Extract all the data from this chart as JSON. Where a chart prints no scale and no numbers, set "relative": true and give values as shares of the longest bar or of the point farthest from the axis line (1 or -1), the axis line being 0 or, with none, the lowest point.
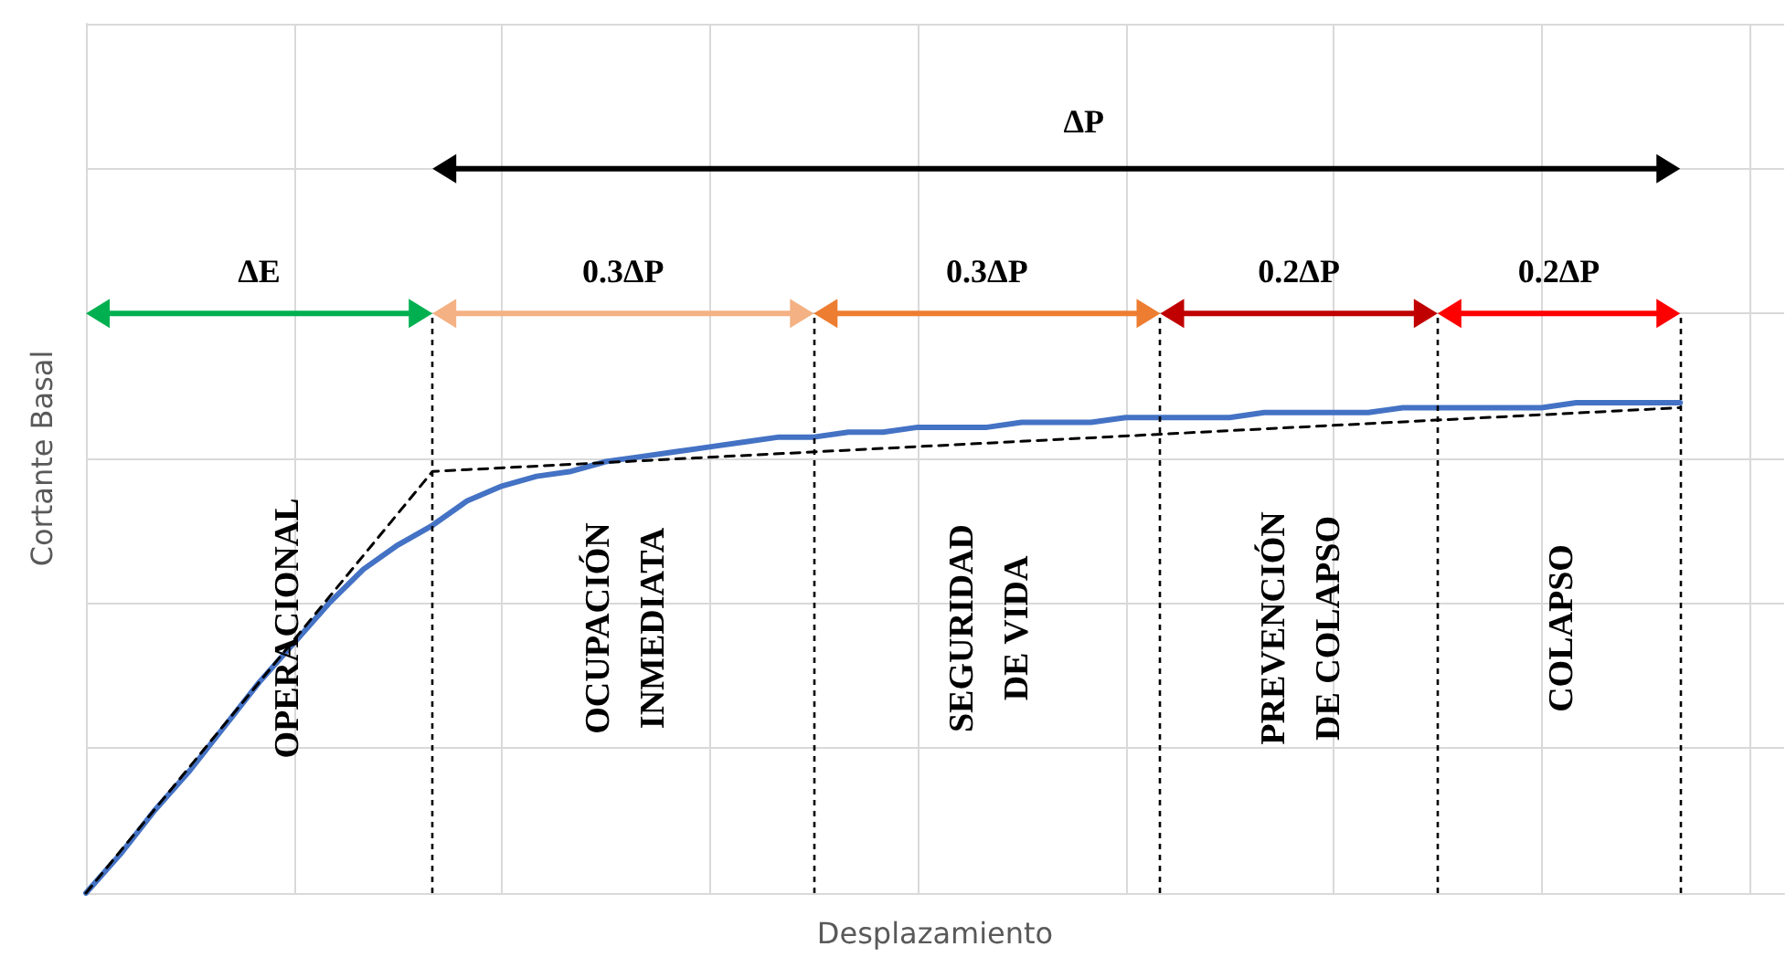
{
  "chart_data": {
    "type": "line",
    "relative": true,
    "xlabel": "Desplazamiento",
    "ylabel": "Cortante Basal",
    "categories": [
      null,
      null,
      null,
      null,
      null,
      null,
      null,
      null,
      null,
      null,
      null,
      null,
      null,
      null,
      null,
      null,
      null,
      null,
      null,
      null,
      null,
      null,
      null,
      null,
      null,
      null,
      null,
      null,
      null,
      null,
      null,
      null,
      null,
      null,
      null,
      null,
      null,
      null,
      null,
      null,
      null,
      null,
      null,
      null,
      null,
      null,
      null,
      null,
      null,
      null
    ],
    "series": [
      {
        "color": "#4472c4",
        "line_style": "solid",
        "values": [
          0,
          0.08,
          0.17,
          0.25,
          0.34,
          0.43,
          0.51,
          0.59,
          0.66,
          0.71,
          0.75,
          0.8,
          0.83,
          0.85,
          0.86,
          0.88,
          0.89,
          0.9,
          0.91,
          0.92,
          0.93,
          0.93,
          0.94,
          0.94,
          0.95,
          0.95,
          0.95,
          0.96,
          0.96,
          0.96,
          0.97,
          0.97,
          0.97,
          0.97,
          0.98,
          0.98,
          0.98,
          0.98,
          0.99,
          0.99,
          0.99,
          0.99,
          0.99,
          1,
          1,
          1,
          1,
          null,
          null,
          null
        ]
      },
      {
        "color": "#000000",
        "line_style": "dashed",
        "values": [
          0,
          null,
          null,
          null,
          null,
          null,
          null,
          null,
          null,
          null,
          0.86,
          null,
          null,
          null,
          null,
          null,
          null,
          null,
          null,
          null,
          null,
          null,
          null,
          null,
          null,
          null,
          null,
          null,
          null,
          null,
          null,
          null,
          null,
          null,
          null,
          null,
          null,
          null,
          null,
          null,
          null,
          null,
          null,
          null,
          null,
          null,
          0.99,
          null,
          null,
          null
        ]
      }
    ],
    "annotations": [
      "ΔP",
      "ΔE",
      "0.3ΔP",
      "0.3ΔP",
      "0.2ΔP",
      "0.2ΔP",
      "OPERACIONAL",
      "OCUPACIÓN\nINMEDIATA",
      "SEGURIDAD\nDE VIDA",
      "PREVENCIÓN\nDE  COLAPSO",
      "COLAPSO"
    ],
    "grid": true,
    "marker": "none"
  }
}
